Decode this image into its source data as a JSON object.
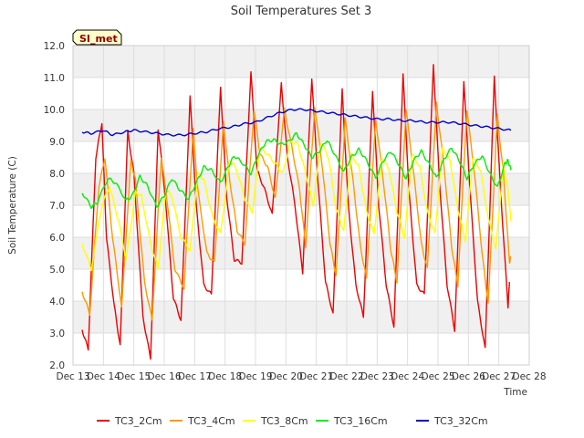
{
  "chart_data": {
    "type": "line",
    "title": "Soil Temperatures Set 3",
    "xlabel": "Time",
    "ylabel": "Soil Temperature (C)",
    "badge": "SI_met",
    "ylim": [
      2.0,
      12.0
    ],
    "y_ticks": [
      "2.0",
      "3.0",
      "4.0",
      "5.0",
      "6.0",
      "7.0",
      "8.0",
      "9.0",
      "10.0",
      "11.0",
      "12.0"
    ],
    "x_ticks": [
      "Dec 13",
      "Dec 14",
      "Dec 15",
      "Dec 16",
      "Dec 17",
      "Dec 18",
      "Dec 19",
      "Dec 20",
      "Dec 21",
      "Dec 22",
      "Dec 23",
      "Dec 24",
      "Dec 25",
      "Dec 26",
      "Dec 27",
      "Dec 28"
    ],
    "x_start_label": "Dec 13",
    "grid": true,
    "legend_position": "bottom",
    "series": [
      {
        "name": "TC3_2Cm",
        "color": "#ee0000",
        "points": [
          [
            13.3,
            3.1
          ],
          [
            13.5,
            2.5
          ],
          [
            13.75,
            8.5
          ],
          [
            13.95,
            9.6
          ],
          [
            14.1,
            6.0
          ],
          [
            14.35,
            3.9
          ],
          [
            14.55,
            2.6
          ],
          [
            14.8,
            9.3
          ],
          [
            15.0,
            8.0
          ],
          [
            15.3,
            3.5
          ],
          [
            15.55,
            2.2
          ],
          [
            15.8,
            9.4
          ],
          [
            16.0,
            7.6
          ],
          [
            16.3,
            4.1
          ],
          [
            16.55,
            3.4
          ],
          [
            16.85,
            10.4
          ],
          [
            17.05,
            7.0
          ],
          [
            17.3,
            4.5
          ],
          [
            17.55,
            4.2
          ],
          [
            17.85,
            10.7
          ],
          [
            18.05,
            7.3
          ],
          [
            18.3,
            5.3
          ],
          [
            18.55,
            5.2
          ],
          [
            18.85,
            11.2
          ],
          [
            19.05,
            8.1
          ],
          [
            19.3,
            7.5
          ],
          [
            19.55,
            6.7
          ],
          [
            19.85,
            10.8
          ],
          [
            20.05,
            8.5
          ],
          [
            20.3,
            7.0
          ],
          [
            20.55,
            4.9
          ],
          [
            20.85,
            11.0
          ],
          [
            21.05,
            7.8
          ],
          [
            21.3,
            4.6
          ],
          [
            21.55,
            3.6
          ],
          [
            21.85,
            10.6
          ],
          [
            22.05,
            7.0
          ],
          [
            22.3,
            4.5
          ],
          [
            22.55,
            3.5
          ],
          [
            22.85,
            10.6
          ],
          [
            23.05,
            7.0
          ],
          [
            23.3,
            4.5
          ],
          [
            23.55,
            3.2
          ],
          [
            23.85,
            11.1
          ],
          [
            24.05,
            7.4
          ],
          [
            24.3,
            4.5
          ],
          [
            24.55,
            4.2
          ],
          [
            24.85,
            11.4
          ],
          [
            25.05,
            7.7
          ],
          [
            25.3,
            4.5
          ],
          [
            25.55,
            3.1
          ],
          [
            25.85,
            10.9
          ],
          [
            26.05,
            7.5
          ],
          [
            26.3,
            4.0
          ],
          [
            26.55,
            2.5
          ],
          [
            26.85,
            11.0
          ],
          [
            27.05,
            7.6
          ],
          [
            27.3,
            3.8
          ],
          [
            27.35,
            4.6
          ]
        ]
      },
      {
        "name": "TC3_4Cm",
        "color": "#ff9900",
        "points": [
          [
            13.3,
            4.3
          ],
          [
            13.55,
            3.6
          ],
          [
            13.85,
            7.6
          ],
          [
            14.05,
            8.5
          ],
          [
            14.3,
            6.0
          ],
          [
            14.6,
            3.8
          ],
          [
            14.9,
            8.4
          ],
          [
            15.05,
            7.8
          ],
          [
            15.35,
            4.6
          ],
          [
            15.6,
            3.4
          ],
          [
            15.9,
            8.5
          ],
          [
            16.05,
            7.5
          ],
          [
            16.35,
            5.0
          ],
          [
            16.65,
            4.4
          ],
          [
            16.95,
            9.4
          ],
          [
            17.1,
            7.5
          ],
          [
            17.4,
            5.5
          ],
          [
            17.65,
            5.2
          ],
          [
            17.95,
            9.6
          ],
          [
            18.15,
            7.8
          ],
          [
            18.4,
            6.2
          ],
          [
            18.65,
            5.8
          ],
          [
            18.95,
            10.0
          ],
          [
            19.15,
            8.6
          ],
          [
            19.4,
            8.2
          ],
          [
            19.65,
            7.2
          ],
          [
            19.95,
            10.0
          ],
          [
            20.2,
            8.8
          ],
          [
            20.45,
            7.5
          ],
          [
            20.65,
            5.7
          ],
          [
            20.95,
            10.1
          ],
          [
            21.2,
            8.2
          ],
          [
            21.45,
            5.8
          ],
          [
            21.65,
            4.8
          ],
          [
            21.95,
            9.7
          ],
          [
            22.2,
            7.8
          ],
          [
            22.45,
            5.7
          ],
          [
            22.65,
            4.7
          ],
          [
            22.95,
            9.7
          ],
          [
            23.2,
            7.8
          ],
          [
            23.45,
            5.6
          ],
          [
            23.65,
            4.6
          ],
          [
            23.95,
            10.0
          ],
          [
            24.2,
            8.0
          ],
          [
            24.45,
            5.8
          ],
          [
            24.65,
            5.0
          ],
          [
            24.95,
            10.2
          ],
          [
            25.2,
            8.2
          ],
          [
            25.45,
            5.7
          ],
          [
            25.65,
            4.5
          ],
          [
            25.95,
            10.0
          ],
          [
            26.2,
            8.0
          ],
          [
            26.45,
            5.5
          ],
          [
            26.65,
            3.9
          ],
          [
            26.95,
            9.8
          ],
          [
            27.15,
            8.0
          ],
          [
            27.35,
            5.2
          ],
          [
            27.4,
            5.4
          ]
        ]
      },
      {
        "name": "TC3_8Cm",
        "color": "#ffff00",
        "points": [
          [
            13.3,
            5.8
          ],
          [
            13.6,
            5.0
          ],
          [
            13.95,
            7.0
          ],
          [
            14.2,
            7.6
          ],
          [
            14.5,
            6.5
          ],
          [
            14.75,
            5.3
          ],
          [
            15.05,
            7.4
          ],
          [
            15.25,
            7.3
          ],
          [
            15.55,
            5.8
          ],
          [
            15.8,
            5.0
          ],
          [
            16.05,
            7.5
          ],
          [
            16.25,
            7.3
          ],
          [
            16.55,
            6.0
          ],
          [
            16.85,
            5.6
          ],
          [
            17.1,
            8.0
          ],
          [
            17.3,
            7.8
          ],
          [
            17.6,
            6.6
          ],
          [
            17.85,
            6.1
          ],
          [
            18.15,
            8.4
          ],
          [
            18.35,
            8.2
          ],
          [
            18.65,
            7.2
          ],
          [
            18.9,
            6.8
          ],
          [
            19.15,
            8.8
          ],
          [
            19.4,
            8.6
          ],
          [
            19.65,
            8.3
          ],
          [
            19.9,
            8.0
          ],
          [
            20.15,
            9.0
          ],
          [
            20.4,
            8.9
          ],
          [
            20.65,
            8.0
          ],
          [
            20.9,
            7.0
          ],
          [
            21.15,
            9.0
          ],
          [
            21.4,
            8.5
          ],
          [
            21.65,
            6.9
          ],
          [
            21.9,
            6.2
          ],
          [
            22.15,
            8.6
          ],
          [
            22.4,
            8.2
          ],
          [
            22.65,
            6.8
          ],
          [
            22.9,
            6.1
          ],
          [
            23.15,
            8.5
          ],
          [
            23.4,
            8.1
          ],
          [
            23.65,
            6.8
          ],
          [
            23.9,
            6.0
          ],
          [
            24.15,
            8.6
          ],
          [
            24.4,
            8.2
          ],
          [
            24.65,
            6.8
          ],
          [
            24.9,
            6.1
          ],
          [
            25.15,
            8.8
          ],
          [
            25.4,
            8.4
          ],
          [
            25.65,
            6.9
          ],
          [
            25.9,
            5.9
          ],
          [
            26.15,
            8.5
          ],
          [
            26.4,
            8.1
          ],
          [
            26.65,
            6.6
          ],
          [
            26.9,
            5.6
          ],
          [
            27.15,
            8.3
          ],
          [
            27.3,
            7.5
          ],
          [
            27.4,
            6.5
          ]
        ]
      },
      {
        "name": "TC3_16Cm",
        "color": "#00ee00",
        "points": [
          [
            13.3,
            7.4
          ],
          [
            13.6,
            6.95
          ],
          [
            13.8,
            7.1
          ],
          [
            14.15,
            7.85
          ],
          [
            14.4,
            7.7
          ],
          [
            14.75,
            7.15
          ],
          [
            14.95,
            7.3
          ],
          [
            15.2,
            7.9
          ],
          [
            15.45,
            7.6
          ],
          [
            15.75,
            6.95
          ],
          [
            16.0,
            7.3
          ],
          [
            16.25,
            7.85
          ],
          [
            16.5,
            7.5
          ],
          [
            16.8,
            7.2
          ],
          [
            17.05,
            7.7
          ],
          [
            17.3,
            8.2
          ],
          [
            17.55,
            8.1
          ],
          [
            17.85,
            7.7
          ],
          [
            18.1,
            8.2
          ],
          [
            18.3,
            8.55
          ],
          [
            18.55,
            8.35
          ],
          [
            18.85,
            8.0
          ],
          [
            19.1,
            8.6
          ],
          [
            19.35,
            9.0
          ],
          [
            19.6,
            9.05
          ],
          [
            19.85,
            8.9
          ],
          [
            20.1,
            9.0
          ],
          [
            20.35,
            9.25
          ],
          [
            20.6,
            8.9
          ],
          [
            20.85,
            8.5
          ],
          [
            21.1,
            8.7
          ],
          [
            21.35,
            9.05
          ],
          [
            21.6,
            8.6
          ],
          [
            21.9,
            8.05
          ],
          [
            22.15,
            8.5
          ],
          [
            22.4,
            8.75
          ],
          [
            22.65,
            8.4
          ],
          [
            22.95,
            7.85
          ],
          [
            23.2,
            8.4
          ],
          [
            23.45,
            8.7
          ],
          [
            23.7,
            8.3
          ],
          [
            23.95,
            7.85
          ],
          [
            24.2,
            8.4
          ],
          [
            24.45,
            8.7
          ],
          [
            24.7,
            8.3
          ],
          [
            24.95,
            7.85
          ],
          [
            25.2,
            8.45
          ],
          [
            25.45,
            8.8
          ],
          [
            25.7,
            8.4
          ],
          [
            25.95,
            7.85
          ],
          [
            26.2,
            8.3
          ],
          [
            26.45,
            8.55
          ],
          [
            26.7,
            8.0
          ],
          [
            26.95,
            7.55
          ],
          [
            27.2,
            8.3
          ],
          [
            27.3,
            8.4
          ],
          [
            27.4,
            8.1
          ]
        ]
      },
      {
        "name": "TC3_32Cm",
        "color": "#0000cc",
        "points": [
          [
            13.3,
            9.3
          ],
          [
            13.6,
            9.25
          ],
          [
            14.0,
            9.35
          ],
          [
            14.3,
            9.2
          ],
          [
            14.7,
            9.3
          ],
          [
            15.0,
            9.35
          ],
          [
            15.4,
            9.3
          ],
          [
            15.8,
            9.25
          ],
          [
            16.2,
            9.2
          ],
          [
            16.6,
            9.2
          ],
          [
            17.0,
            9.25
          ],
          [
            17.4,
            9.3
          ],
          [
            17.8,
            9.4
          ],
          [
            18.2,
            9.45
          ],
          [
            18.6,
            9.55
          ],
          [
            19.0,
            9.6
          ],
          [
            19.4,
            9.75
          ],
          [
            19.8,
            9.9
          ],
          [
            20.2,
            10.0
          ],
          [
            20.6,
            10.0
          ],
          [
            21.0,
            9.95
          ],
          [
            21.4,
            9.9
          ],
          [
            21.8,
            9.85
          ],
          [
            22.2,
            9.8
          ],
          [
            22.6,
            9.75
          ],
          [
            23.0,
            9.7
          ],
          [
            23.4,
            9.7
          ],
          [
            23.8,
            9.65
          ],
          [
            24.2,
            9.65
          ],
          [
            24.6,
            9.6
          ],
          [
            25.0,
            9.6
          ],
          [
            25.4,
            9.6
          ],
          [
            25.8,
            9.55
          ],
          [
            26.2,
            9.5
          ],
          [
            26.6,
            9.45
          ],
          [
            27.0,
            9.4
          ],
          [
            27.4,
            9.35
          ]
        ]
      }
    ]
  }
}
